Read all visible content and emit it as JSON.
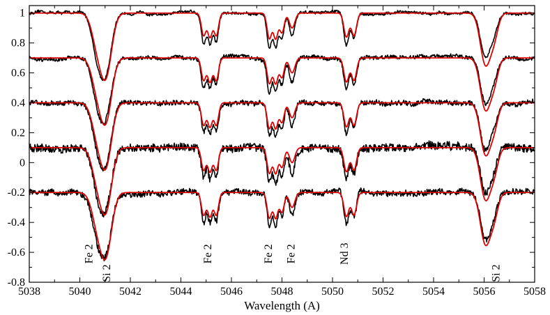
{
  "chart_data": {
    "type": "line",
    "title": "",
    "xlabel": "Wavelength (A)",
    "ylabel": "",
    "xlim": [
      5038,
      5058
    ],
    "ylim": [
      -0.8,
      1.05
    ],
    "x_ticks": [
      5038,
      5040,
      5042,
      5044,
      5046,
      5048,
      5050,
      5052,
      5054,
      5056,
      5058
    ],
    "y_ticks": [
      -0.8,
      -0.6,
      -0.4,
      -0.2,
      0,
      0.2,
      0.4,
      0.6,
      0.8,
      1
    ],
    "y_tick_labels": [
      "-0.8",
      "-0.6",
      "-0.4",
      "-0.2",
      "0",
      "0.2",
      "0.4",
      "0.6",
      "0.8",
      "1"
    ],
    "grid": false,
    "legend": "none",
    "colors": {
      "observed": "#000000",
      "model": "#e00000"
    },
    "spectra": [
      {
        "offset": 1.0,
        "noise": 0.008
      },
      {
        "offset": 0.7,
        "noise": 0.012
      },
      {
        "offset": 0.4,
        "noise": 0.016
      },
      {
        "offset": 0.1,
        "noise": 0.026
      },
      {
        "offset": -0.2,
        "noise": 0.02
      }
    ],
    "lines": [
      {
        "center": 5040.7,
        "width": 0.22,
        "depth_model": 0.2,
        "depth_obs": 0.26
      },
      {
        "center": 5041.05,
        "width": 0.22,
        "depth_model": 0.38,
        "depth_obs": 0.34
      },
      {
        "center": 5044.9,
        "width": 0.09,
        "depth_model": 0.15,
        "depth_obs": 0.2
      },
      {
        "center": 5045.15,
        "width": 0.09,
        "depth_model": 0.16,
        "depth_obs": 0.2
      },
      {
        "center": 5045.4,
        "width": 0.09,
        "depth_model": 0.15,
        "depth_obs": 0.19
      },
      {
        "center": 5047.5,
        "width": 0.09,
        "depth_model": 0.17,
        "depth_obs": 0.22
      },
      {
        "center": 5047.75,
        "width": 0.09,
        "depth_model": 0.17,
        "depth_obs": 0.22
      },
      {
        "center": 5048.0,
        "width": 0.09,
        "depth_model": 0.13,
        "depth_obs": 0.17
      },
      {
        "center": 5048.4,
        "width": 0.11,
        "depth_model": 0.1,
        "depth_obs": 0.16
      },
      {
        "center": 5050.55,
        "width": 0.1,
        "depth_model": 0.16,
        "depth_obs": 0.21
      },
      {
        "center": 5050.85,
        "width": 0.1,
        "depth_model": 0.15,
        "depth_obs": 0.17
      },
      {
        "center": 5056.05,
        "width": 0.2,
        "depth_model": 0.34,
        "depth_obs": 0.3
      },
      {
        "center": 5056.4,
        "width": 0.16,
        "depth_model": 0.14,
        "depth_obs": 0.1
      }
    ],
    "annotations": [
      {
        "text": "Fe 2",
        "x": 5040.5,
        "y": -0.61
      },
      {
        "text": "Si 2",
        "x": 5041.2,
        "y": -0.74
      },
      {
        "text": "Fe 2",
        "x": 5045.2,
        "y": -0.61
      },
      {
        "text": "Fe 2",
        "x": 5047.6,
        "y": -0.61
      },
      {
        "text": "Fe 2",
        "x": 5048.5,
        "y": -0.61
      },
      {
        "text": "Nd 3",
        "x": 5050.6,
        "y": -0.61
      },
      {
        "text": "Si 2",
        "x": 5056.6,
        "y": -0.74
      }
    ]
  }
}
